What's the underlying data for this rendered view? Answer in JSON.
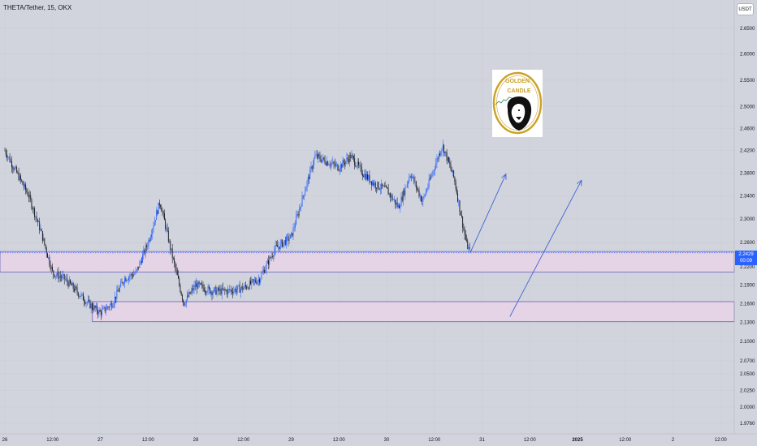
{
  "header": {
    "title": "THETA/Tether, 15, OKX",
    "currency": "USDT"
  },
  "price_tag": {
    "price": "2.2429",
    "countdown": "00:09"
  },
  "logo": {
    "line1": "GOLDEN",
    "line2": "CANDLE"
  },
  "colors": {
    "background": "#d1d4dc",
    "up_candle": "#2962ff",
    "down_candle": "#131722",
    "zone_fill": "#e8d3e6",
    "zone_border": "#6e5ec0",
    "arrow": "#3d63d8",
    "price_line": "#2962ff",
    "logo_gold": "#c9a227"
  },
  "chart_data": {
    "type": "candlestick",
    "title": "THETA/Tether, 15, OKX",
    "y_axis": {
      "ticks": [
        "2.6500",
        "2.6000",
        "2.5500",
        "2.5000",
        "2.4600",
        "2.4200",
        "2.3800",
        "2.3400",
        "2.3000",
        "2.2600",
        "2.2200",
        "2.1900",
        "2.1600",
        "2.1300",
        "2.1000",
        "2.0700",
        "2.0500",
        "2.0250",
        "2.0000",
        "1.9760"
      ],
      "scale": "log",
      "position": "right"
    },
    "x_axis": {
      "ticks": [
        "26",
        "12:00",
        "27",
        "12:00",
        "28",
        "12:00",
        "29",
        "12:00",
        "30",
        "12:00",
        "31",
        "12:00",
        "2025",
        "12:00",
        "2",
        "12:00"
      ]
    },
    "approx_close_path": [
      [
        "26 00:00",
        2.42
      ],
      [
        "26 03:00",
        2.38
      ],
      [
        "26 06:00",
        2.34
      ],
      [
        "26 09:00",
        2.28
      ],
      [
        "26 12:00",
        2.21
      ],
      [
        "26 15:00",
        2.2
      ],
      [
        "26 18:00",
        2.18
      ],
      [
        "26 21:00",
        2.16
      ],
      [
        "27 00:00",
        2.145
      ],
      [
        "27 03:00",
        2.16
      ],
      [
        "27 06:00",
        2.2
      ],
      [
        "27 09:00",
        2.21
      ],
      [
        "27 12:00",
        2.26
      ],
      [
        "27 15:00",
        2.33
      ],
      [
        "27 18:00",
        2.24
      ],
      [
        "27 21:00",
        2.16
      ],
      [
        "28 00:00",
        2.19
      ],
      [
        "28 04:00",
        2.18
      ],
      [
        "28 08:00",
        2.18
      ],
      [
        "28 12:00",
        2.185
      ],
      [
        "28 16:00",
        2.2
      ],
      [
        "28 20:00",
        2.25
      ],
      [
        "29 00:00",
        2.27
      ],
      [
        "29 03:00",
        2.34
      ],
      [
        "29 06:00",
        2.41
      ],
      [
        "29 09:00",
        2.4
      ],
      [
        "29 12:00",
        2.39
      ],
      [
        "29 15:00",
        2.41
      ],
      [
        "29 18:00",
        2.38
      ],
      [
        "29 21:00",
        2.36
      ],
      [
        "30 00:00",
        2.35
      ],
      [
        "30 03:00",
        2.32
      ],
      [
        "30 06:00",
        2.38
      ],
      [
        "30 09:00",
        2.33
      ],
      [
        "30 12:00",
        2.39
      ],
      [
        "30 14:00",
        2.43
      ],
      [
        "30 17:00",
        2.37
      ],
      [
        "30 20:00",
        2.26
      ],
      [
        "30 21:00",
        2.2429
      ]
    ],
    "last_price": 2.2429,
    "zones": [
      {
        "top": 2.245,
        "bottom": 2.211
      },
      {
        "top": 2.163,
        "bottom": 2.131
      }
    ],
    "arrows": [
      {
        "from": [
          "30 21:00",
          2.2429
        ],
        "to": [
          "31 06:00",
          2.378
        ]
      },
      {
        "from": [
          "31 07:00",
          2.139
        ],
        "to": [
          "1 01:00",
          2.367
        ]
      }
    ],
    "grid": true
  }
}
